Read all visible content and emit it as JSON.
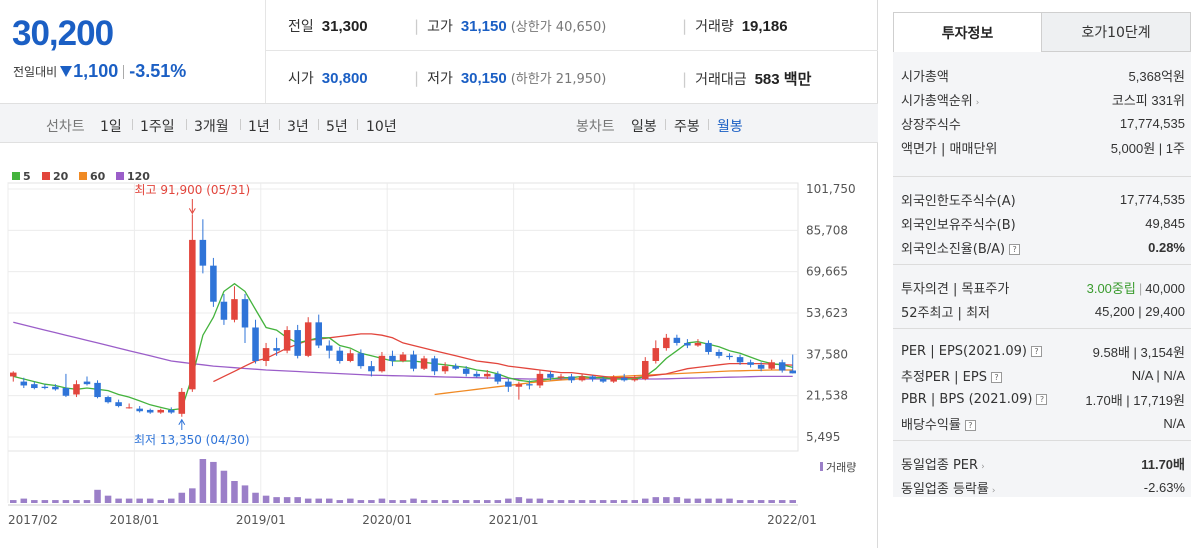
{
  "quote": {
    "price": "30,200",
    "change_label": "전일대비",
    "change_amount": "1,100",
    "change_rate": "-3.51%",
    "prev_label": "전일",
    "prev": "31,300",
    "high_label": "고가",
    "high": "31,150",
    "upper_limit": "(상한가 40,650)",
    "volume_label": "거래량",
    "volume": "19,186",
    "open_label": "시가",
    "open": "30,800",
    "low_label": "저가",
    "low": "30,150",
    "lower_limit": "(하한가 21,950)",
    "amount_label": "거래대금",
    "amount": "583 백만"
  },
  "toolbar": {
    "line_chart": "선차트",
    "periods": [
      "1일",
      "1주일",
      "3개월",
      "1년",
      "3년",
      "5년",
      "10년"
    ],
    "candle_chart": "봉차트",
    "candles": [
      "일봉",
      "주봉",
      "월봉"
    ],
    "selected_candle": "월봉"
  },
  "chart_data": {
    "type": "candlestick",
    "legend": [
      "5",
      "20",
      "60",
      "120"
    ],
    "legend_colors": [
      "#44b33d",
      "#e2453c",
      "#f08a24",
      "#9b5ec9"
    ],
    "y_ticks": [
      "101,750",
      "85,708",
      "69,665",
      "53,623",
      "37,580",
      "21,538",
      "5,495"
    ],
    "ylim": [
      5495,
      101750
    ],
    "x_ticks": [
      "2017/02",
      "2018/01",
      "2019/01",
      "2020/01",
      "2021/01",
      "2022/01"
    ],
    "high_annotation": "최고 91,900 (05/31)",
    "low_annotation": "최저 13,350 (04/30)",
    "volume_label": "거래량",
    "candles": [
      [
        29000,
        30500,
        27500,
        27000,
        31000
      ],
      [
        27000,
        25500,
        27500,
        24500,
        28500
      ],
      [
        26000,
        24500,
        26500,
        24000,
        27000
      ],
      [
        25000,
        24500,
        25500,
        24000,
        26000
      ],
      [
        25000,
        24000,
        25500,
        23500,
        26000
      ],
      [
        24500,
        21500,
        25000,
        21000,
        30000
      ],
      [
        22000,
        26000,
        27000,
        21000,
        27500
      ],
      [
        27000,
        26000,
        28500,
        25500,
        29000
      ],
      [
        26500,
        21000,
        27500,
        20500,
        27500
      ],
      [
        21000,
        19000,
        21500,
        18500,
        21500
      ],
      [
        19000,
        17500,
        19500,
        17000,
        20000
      ],
      [
        17000,
        17000,
        18000,
        16500,
        18500
      ],
      [
        16500,
        15500,
        17000,
        15000,
        17500
      ],
      [
        16000,
        15000,
        16500,
        14500,
        16500
      ],
      [
        15000,
        16000,
        16500,
        14500,
        16500
      ],
      [
        16000,
        15000,
        16500,
        14500,
        17000
      ],
      [
        14500,
        23000,
        24000,
        13350,
        24500
      ],
      [
        24000,
        82000,
        91900,
        23000,
        91900
      ],
      [
        82000,
        72000,
        88000,
        69000,
        90000
      ],
      [
        72000,
        58000,
        74000,
        56000,
        75000
      ],
      [
        58000,
        51000,
        60000,
        49000,
        61000
      ],
      [
        51000,
        59000,
        62000,
        50000,
        64000
      ],
      [
        59000,
        48000,
        60000,
        42000,
        61000
      ],
      [
        48000,
        35000,
        50000,
        34000,
        51000
      ],
      [
        35000,
        40000,
        41500,
        33000,
        42000
      ],
      [
        40000,
        39000,
        43000,
        37000,
        44000
      ],
      [
        39000,
        47000,
        48000,
        38000,
        48500
      ],
      [
        47000,
        37000,
        48000,
        36000,
        49000
      ],
      [
        37000,
        50000,
        51000,
        36500,
        52000
      ],
      [
        50000,
        41000,
        52000,
        40000,
        53000
      ],
      [
        41000,
        39000,
        42000,
        36000,
        43000
      ],
      [
        39000,
        35000,
        40000,
        34000,
        40500
      ],
      [
        35000,
        38000,
        39000,
        34500,
        39500
      ],
      [
        38000,
        33000,
        39000,
        32000,
        39500
      ],
      [
        33000,
        31000,
        34000,
        29000,
        35000
      ],
      [
        31000,
        37000,
        38000,
        30500,
        38500
      ],
      [
        37000,
        35000,
        38000,
        33000,
        39000
      ],
      [
        35000,
        37500,
        38000,
        34500,
        38500
      ],
      [
        37500,
        32000,
        38500,
        31000,
        39000
      ],
      [
        32000,
        36000,
        36500,
        31500,
        37000
      ],
      [
        36000,
        31000,
        36500,
        29500,
        37000
      ],
      [
        31000,
        33000,
        34000,
        30000,
        34500
      ],
      [
        33000,
        32000,
        33500,
        31500,
        34000
      ],
      [
        32000,
        30000,
        32500,
        29000,
        33000
      ],
      [
        30000,
        29000,
        30500,
        28500,
        31000
      ],
      [
        29000,
        30000,
        31000,
        28000,
        31500
      ],
      [
        30000,
        27000,
        30500,
        26000,
        31000
      ],
      [
        27000,
        25000,
        27500,
        23000,
        28000
      ],
      [
        25000,
        26000,
        26500,
        20000,
        27000
      ],
      [
        26000,
        25500,
        27000,
        24000,
        27500
      ],
      [
        25500,
        30000,
        31000,
        24500,
        31500
      ],
      [
        30000,
        28500,
        30500,
        27500,
        31000
      ],
      [
        28500,
        29000,
        29500,
        27500,
        30000
      ],
      [
        29000,
        27500,
        29500,
        26500,
        30000
      ],
      [
        27500,
        29000,
        29500,
        27000,
        30000
      ],
      [
        29000,
        28000,
        29500,
        27000,
        29500
      ],
      [
        28000,
        27000,
        28500,
        26500,
        29000
      ],
      [
        27000,
        28500,
        29000,
        26500,
        29500
      ],
      [
        28500,
        27500,
        29000,
        27000,
        30000
      ],
      [
        27500,
        28000,
        29000,
        27000,
        29500
      ],
      [
        28000,
        35000,
        36000,
        27500,
        36500
      ],
      [
        35000,
        40000,
        42000,
        34000,
        43000
      ],
      [
        40000,
        44000,
        45000,
        39000,
        45500
      ],
      [
        44000,
        42000,
        45200,
        41000,
        45200
      ],
      [
        42000,
        41000,
        43000,
        40000,
        43500
      ],
      [
        41000,
        42000,
        43000,
        40500,
        43500
      ],
      [
        42000,
        38500,
        42500,
        37500,
        43000
      ],
      [
        38500,
        37000,
        39000,
        36000,
        39500
      ],
      [
        37000,
        36500,
        37500,
        35500,
        38000
      ],
      [
        36500,
        34500,
        37000,
        33500,
        37500
      ],
      [
        34500,
        33500,
        35000,
        32500,
        35500
      ],
      [
        33500,
        32000,
        34000,
        31000,
        34500
      ],
      [
        32000,
        34500,
        35500,
        31500,
        35500
      ],
      [
        34500,
        31300,
        35000,
        30500,
        35500
      ],
      [
        31300,
        30200,
        31150,
        30150,
        37500
      ]
    ],
    "ma5": [
      29000,
      28000,
      27000,
      26000,
      25500,
      24500,
      24000,
      24500,
      24000,
      23500,
      22000,
      21000,
      19500,
      18000,
      17000,
      16000,
      16500,
      29000,
      45000,
      52000,
      62000,
      65000,
      62000,
      55000,
      48000,
      47000,
      44000,
      42000,
      43000,
      44000,
      44000,
      41000,
      40000,
      38000,
      37000,
      36000,
      35000,
      35000,
      35000,
      34500,
      34000,
      33500,
      33000,
      32500,
      31500,
      31000,
      30000,
      28500,
      27500,
      27000,
      27500,
      28000,
      28500,
      28500,
      29000,
      28500,
      28500,
      28000,
      28000,
      28000,
      29000,
      32000,
      36000,
      39000,
      42000,
      42500,
      41500,
      40500,
      39000,
      38000,
      36500,
      35000,
      34000,
      33500,
      32500
    ],
    "ma20": [
      null,
      null,
      null,
      null,
      null,
      null,
      null,
      null,
      null,
      null,
      null,
      null,
      null,
      null,
      null,
      null,
      null,
      null,
      null,
      27000,
      29000,
      31000,
      33000,
      35000,
      36000,
      38000,
      40000,
      41500,
      43000,
      43500,
      44000,
      44500,
      45000,
      45500,
      45500,
      45000,
      44000,
      42000,
      41000,
      40000,
      39000,
      38000,
      37000,
      36000,
      35000,
      34500,
      34000,
      33000,
      32500,
      32000,
      31500,
      31000,
      30500,
      30500,
      30000,
      29500,
      29000,
      28500,
      28500,
      28500,
      29000,
      29500,
      30000,
      31000,
      32000,
      32500,
      33000,
      33500,
      34000,
      34000,
      34000,
      34000,
      33800,
      33600,
      33400
    ],
    "ma60": [
      null,
      null,
      null,
      null,
      null,
      null,
      null,
      null,
      null,
      null,
      null,
      null,
      null,
      null,
      null,
      null,
      null,
      null,
      null,
      null,
      null,
      null,
      null,
      null,
      null,
      null,
      null,
      null,
      null,
      null,
      null,
      null,
      null,
      null,
      null,
      null,
      null,
      null,
      null,
      null,
      22000,
      22500,
      23000,
      23500,
      24000,
      24500,
      25000,
      25500,
      26000,
      26500,
      27000,
      27300,
      27600,
      27900,
      28200,
      28500,
      28700,
      28900,
      29100,
      29300,
      29500,
      29700,
      29900,
      30100,
      30300,
      30500,
      30700,
      30900,
      31100,
      31200,
      31300,
      31400,
      31500,
      31500,
      31500
    ],
    "ma120": [
      50000,
      49000,
      48000,
      47000,
      46000,
      45000,
      44000,
      43000,
      42000,
      41000,
      40000,
      39000,
      38000,
      37000,
      36000,
      35000,
      34500,
      34000,
      33500,
      33000,
      32700,
      32400,
      32100,
      31800,
      31500,
      31300,
      31100,
      30900,
      30700,
      30500,
      30300,
      30100,
      29900,
      29700,
      29500,
      29400,
      29300,
      29200,
      29100,
      29000,
      28900,
      28800,
      28700,
      28600,
      28500,
      28400,
      28300,
      28200,
      28100,
      28000,
      28000,
      28000,
      28000,
      28000,
      28000,
      28000,
      28000,
      28000,
      28000,
      28000,
      28000,
      28000,
      28100,
      28200,
      28300,
      28400,
      28500,
      28600,
      28700,
      28800,
      28900,
      29000,
      29000,
      29000,
      29000
    ],
    "volume": [
      2,
      3,
      2,
      2,
      2,
      2,
      2,
      2,
      9,
      5,
      3,
      3,
      3,
      3,
      2,
      3,
      7,
      10,
      30,
      28,
      22,
      15,
      12,
      7,
      5,
      4,
      4,
      4,
      3,
      3,
      3,
      2,
      3,
      2,
      2,
      3,
      2,
      2,
      3,
      2,
      2,
      2,
      2,
      2,
      2,
      2,
      2,
      3,
      4,
      3,
      3,
      2,
      2,
      2,
      2,
      2,
      2,
      2,
      2,
      2,
      3,
      4,
      4,
      4,
      3,
      3,
      3,
      3,
      3,
      2,
      2,
      2,
      2,
      2,
      2
    ]
  },
  "sidebar": {
    "tabs": [
      "투자정보",
      "호가10단계"
    ],
    "rows1": [
      {
        "k": "시가총액",
        "v": "5,368억원"
      },
      {
        "k": "시가총액순위",
        "v": "코스피 331위"
      },
      {
        "k": "상장주식수",
        "v": "17,774,535"
      },
      {
        "k": "액면가 | 매매단위",
        "v": "5,000원 | 1주"
      }
    ],
    "rows2": [
      {
        "k": "외국인한도주식수(A)",
        "v": "17,774,535"
      },
      {
        "k": "외국인보유주식수(B)",
        "v": "49,845"
      },
      {
        "k": "외국인소진율(B/A)",
        "v": "0.28%"
      }
    ],
    "rows3": [
      {
        "k": "투자의견 | 목표주가",
        "v1": "3.00중립",
        "v2": "40,000"
      },
      {
        "k": "52주최고 | 최저",
        "v": "45,200 | 29,400"
      }
    ],
    "rows4": [
      {
        "k": "PER | EPS(2021.09)",
        "v": "9.58배 | 3,154원"
      },
      {
        "k": "추정PER | EPS",
        "v": "N/A | N/A"
      },
      {
        "k": "PBR | BPS (2021.09)",
        "v": "1.70배 | 17,719원"
      },
      {
        "k": "배당수익률",
        "v": "N/A"
      }
    ],
    "rows5": [
      {
        "k": "동일업종 PER",
        "v": "11.70배"
      },
      {
        "k": "동일업종 등락률",
        "v": "-2.63%"
      }
    ]
  }
}
